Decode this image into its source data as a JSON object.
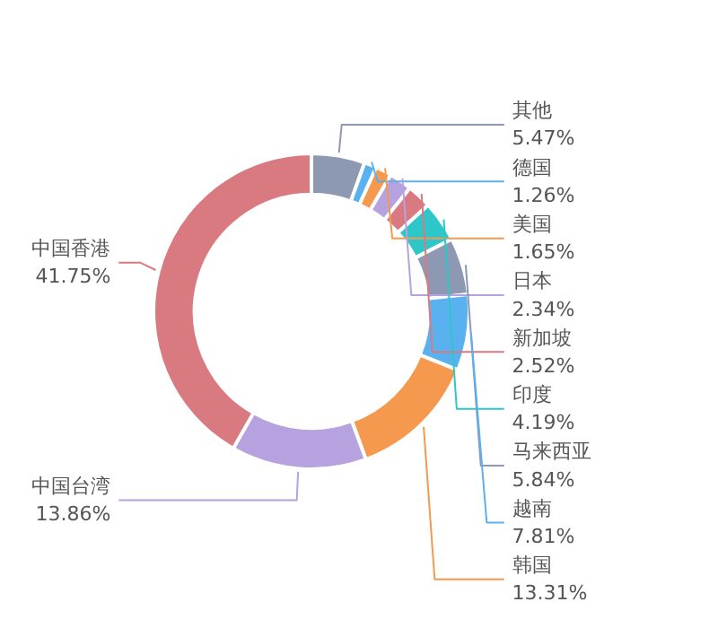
{
  "chart_data": {
    "type": "donut",
    "categories": [
      "其他",
      "德国",
      "美国",
      "日本",
      "新加坡",
      "印度",
      "马来西亚",
      "越南",
      "韩国",
      "中国台湾",
      "中国香港"
    ],
    "values": [
      5.47,
      1.26,
      1.65,
      2.34,
      2.52,
      4.19,
      5.84,
      7.81,
      13.31,
      13.86,
      41.75
    ],
    "colors": [
      "#8d98b3",
      "#5ab1ef",
      "#f5994e",
      "#b6a2de",
      "#d87a80",
      "#2ec7c9",
      "#8d98b3",
      "#5ab1ef",
      "#f5994e",
      "#b6a2de",
      "#d87a80"
    ],
    "value_labels": [
      "5.47%",
      "1.26%",
      "1.65%",
      "2.34%",
      "2.52%",
      "4.19%",
      "5.84%",
      "7.81%",
      "13.31%",
      "13.86%",
      "41.75%"
    ]
  }
}
